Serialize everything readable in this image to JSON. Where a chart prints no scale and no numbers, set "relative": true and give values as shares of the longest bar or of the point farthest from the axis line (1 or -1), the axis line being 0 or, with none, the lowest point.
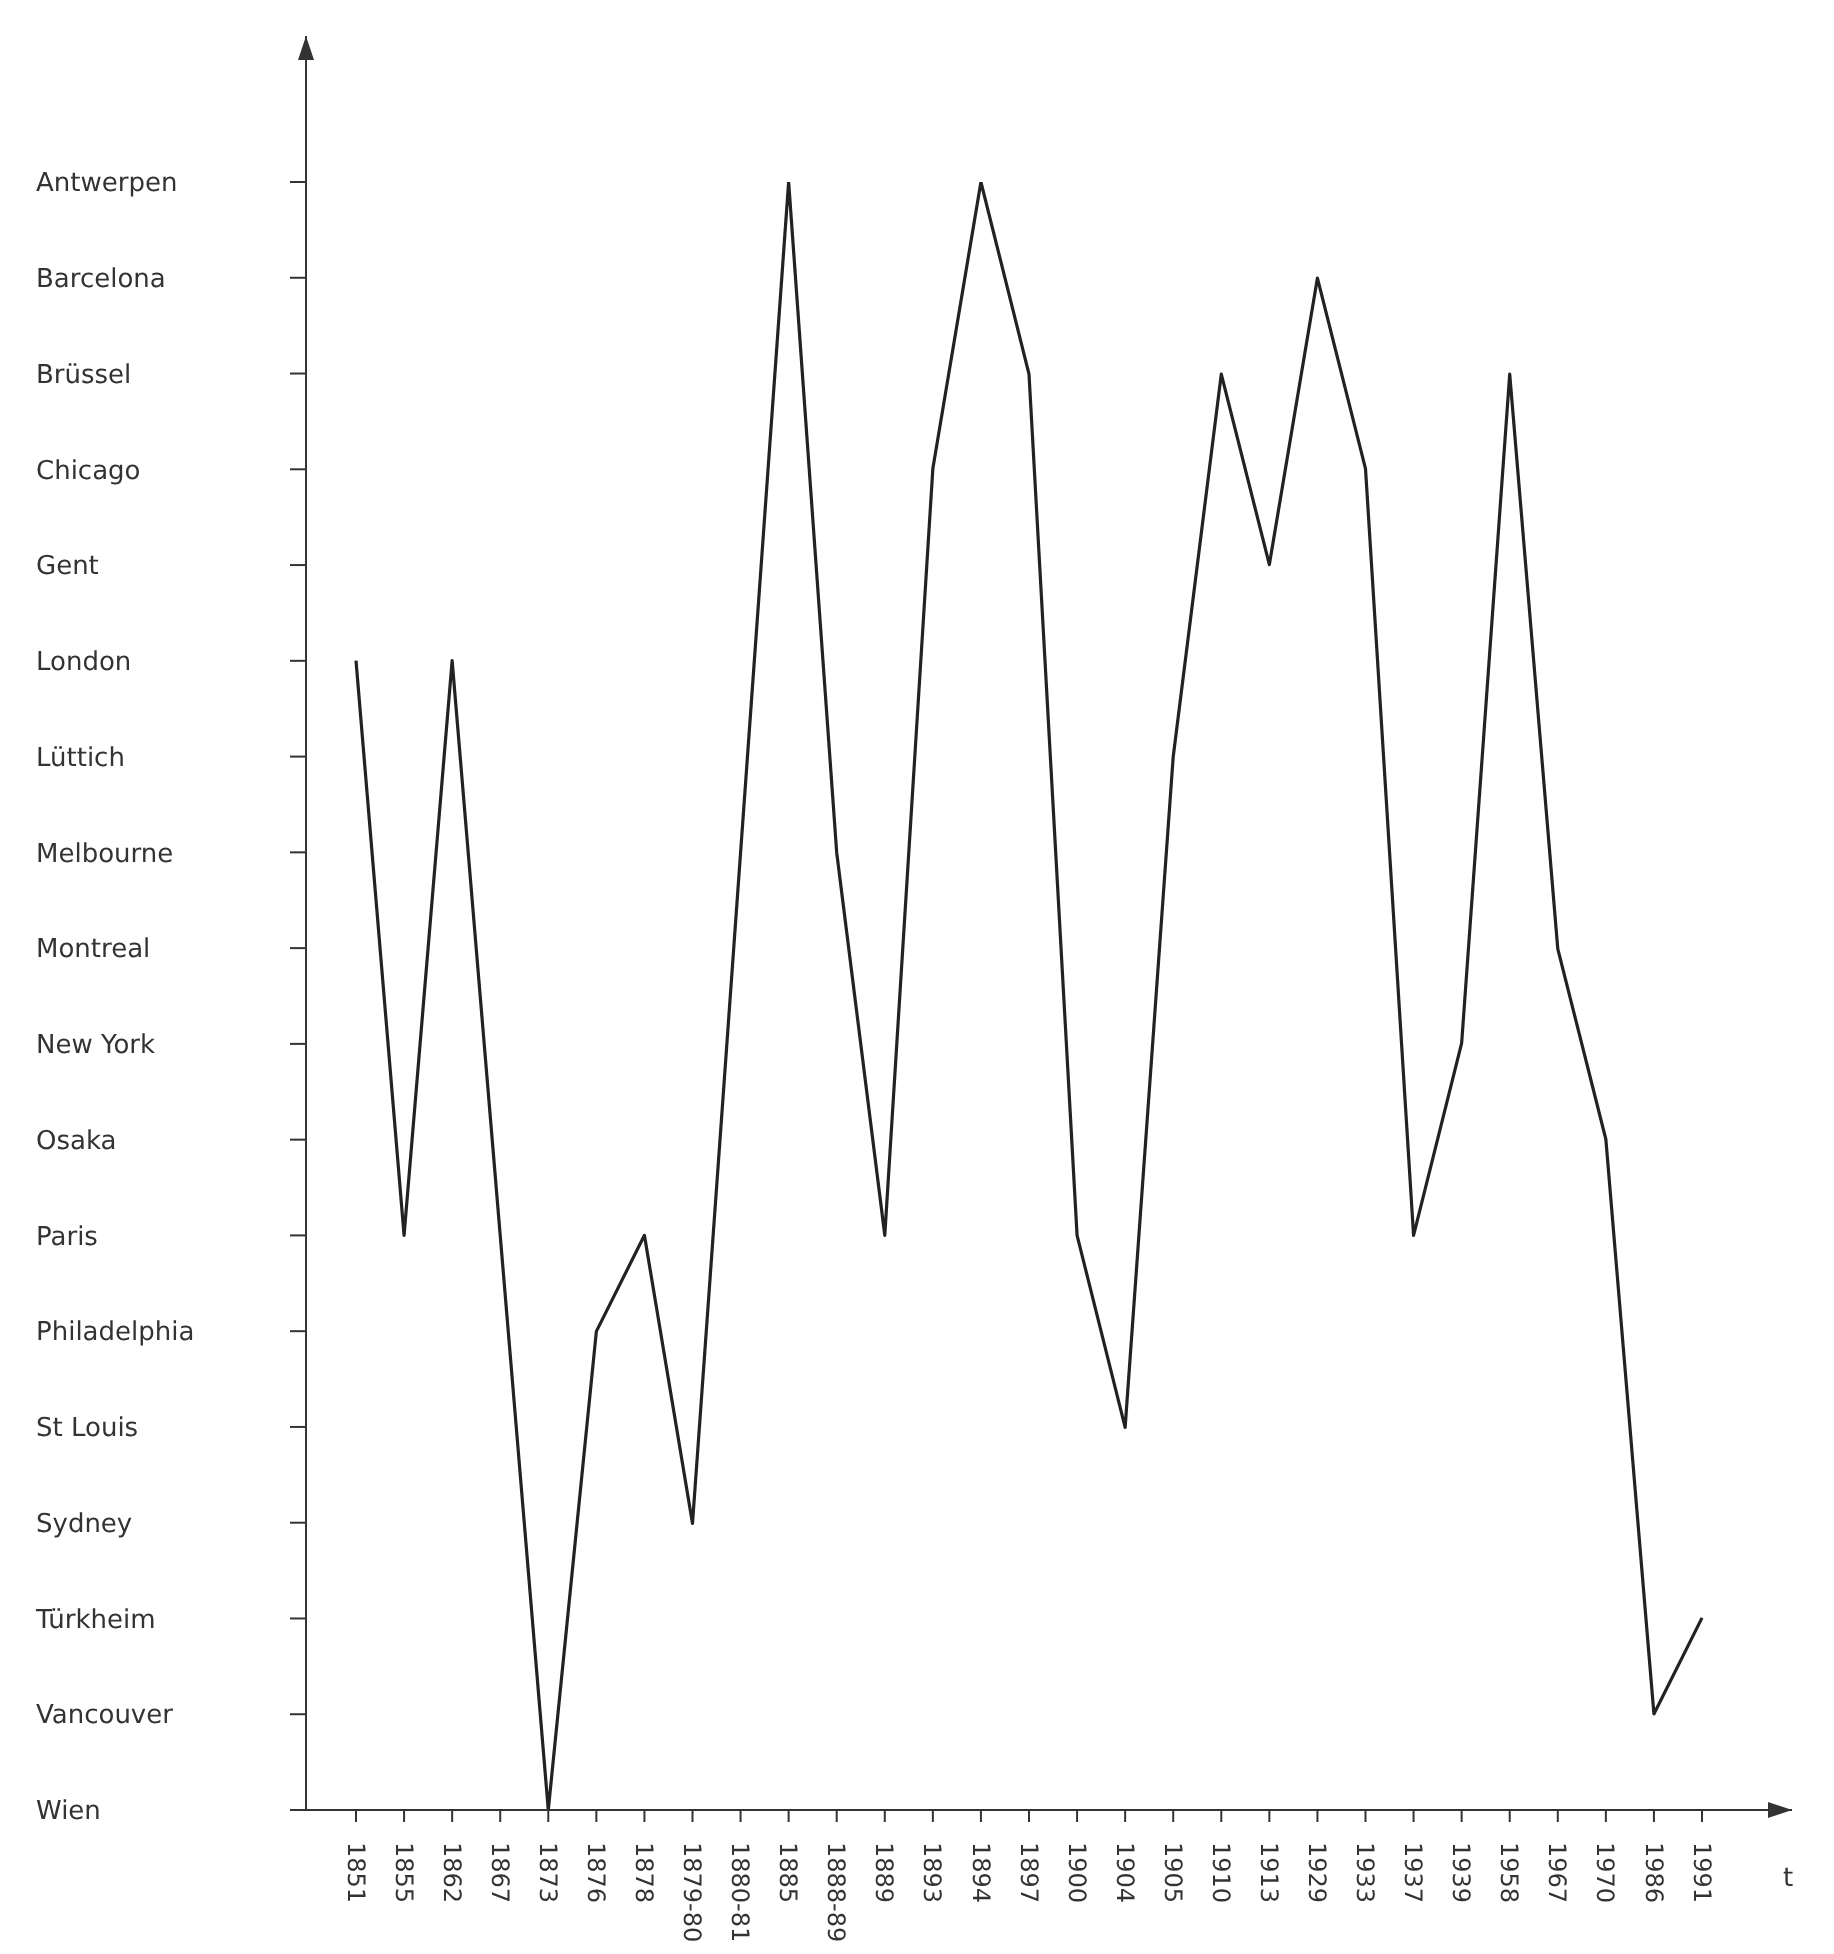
{
  "chart_data": {
    "type": "line",
    "xlabel": "t",
    "relative": true,
    "categories": [
      "1851",
      "1855",
      "1862",
      "1867",
      "1873",
      "1876",
      "1878",
      "1879-80",
      "1880-81",
      "1885",
      "1888-89",
      "1889",
      "1893",
      "1894",
      "1897",
      "1900",
      "1904",
      "1905",
      "1910",
      "1913",
      "1929",
      "1933",
      "1937",
      "1939",
      "1958",
      "1967",
      "1970",
      "1986",
      "1991"
    ],
    "y_categories": [
      "Antwerpen",
      "Barcelona",
      "Brüssel",
      "Chicago",
      "Gent",
      "London",
      "Lüttich",
      "Melbourne",
      "Montreal",
      "New York",
      "Osaka",
      "Paris",
      "Philadelphia",
      "St Louis",
      "Sydney",
      "Türkheim",
      "Vancouver",
      "Wien"
    ],
    "series": [
      {
        "color": "#222222",
        "values": [
          0.706,
          0.353,
          0.706,
          0.353,
          0,
          0.294,
          0.353,
          0.176,
          0.588,
          1,
          0.588,
          0.353,
          0.824,
          1,
          0.882,
          0.353,
          0.235,
          0.647,
          0.882,
          0.765,
          0.941,
          0.824,
          0.353,
          0.471,
          0.882,
          0.529,
          0.412,
          0.059,
          0.118
        ]
      }
    ],
    "grid": false,
    "legend": false,
    "marker": "none",
    "line_style": "solid"
  }
}
